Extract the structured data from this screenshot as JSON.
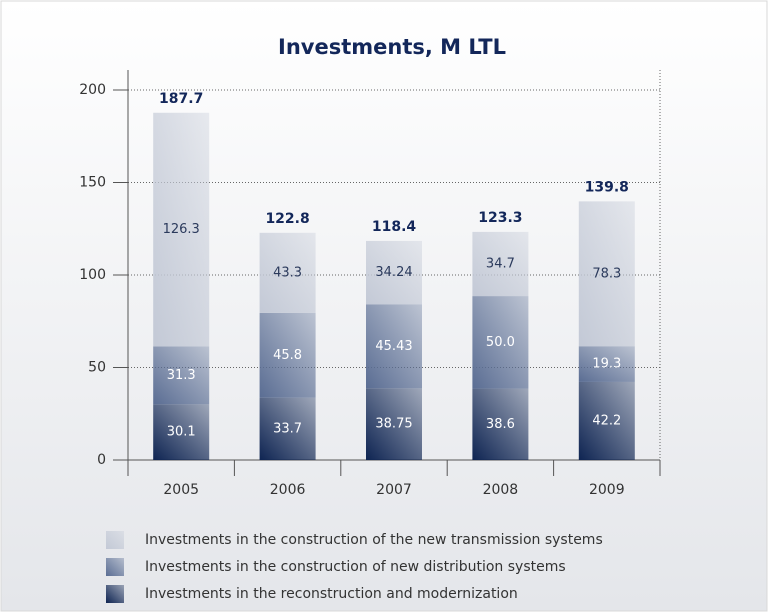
{
  "chart_data": {
    "type": "stacked_bar",
    "title": "Investments, M LTL",
    "categories": [
      "2005",
      "2006",
      "2007",
      "2008",
      "2009"
    ],
    "series": [
      {
        "name": "Investments in the reconstruction and modernization",
        "color": "#0e2452",
        "values": [
          30.1,
          33.7,
          38.75,
          38.6,
          42.2
        ]
      },
      {
        "name": "Investments in the construction of new distribution systems",
        "color": "#5a6d93",
        "values": [
          31.3,
          45.8,
          45.43,
          50.0,
          19.3
        ],
        "value_labels": [
          "31.3",
          "45.8",
          "45.43",
          "50.0",
          "19.3"
        ]
      },
      {
        "name": "Investments in the construction of the new transmission systems",
        "color": "#c3c9d6",
        "values": [
          126.3,
          43.3,
          34.24,
          34.7,
          78.3
        ]
      }
    ],
    "totals": [
      187.7,
      122.8,
      118.4,
      123.3,
      139.8
    ],
    "ylim": [
      0,
      200
    ],
    "yticks": [
      0,
      50,
      100,
      150,
      200
    ],
    "grid": true
  }
}
